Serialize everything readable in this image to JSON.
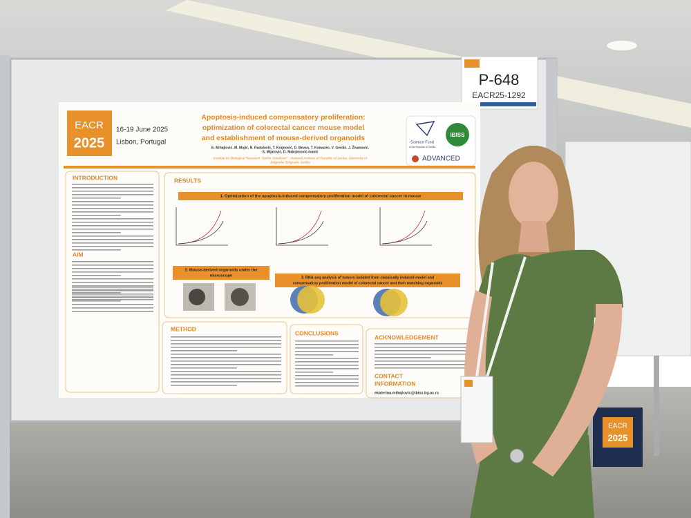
{
  "placard": {
    "number": "P-648",
    "code": "EACR25-1292"
  },
  "poster": {
    "logo": {
      "line1": "EACR",
      "line2": "2025"
    },
    "date": "16-19 June 2025",
    "location": "Lisbon, Portugal",
    "title_lines": [
      "Apoptosis-induced compensatory proliferation:",
      "optimization of colorectal cancer mouse model",
      "and establishment of mouse-derived organoids"
    ],
    "authors": [
      "E. Mihajlović, M. Mojić, N. Radulović, T. Krajnović, D. Bevan, T. Komazec, V. Gerdić, J. Živanović,",
      "S. Mijatović, D. Maksimović-Ivanić"
    ],
    "affiliation": [
      "Institute for Biological Research \"Siniša Stanković\" - National Institute of Republic of Serbia, University of",
      "Belgrade, Belgrade, Serbia"
    ],
    "sponsors": {
      "fund": [
        "Science Fund",
        "of the Republic of Serbia"
      ],
      "program": "ADVANCED",
      "institute": "IBISS"
    },
    "sections": {
      "introduction": "INTRODUCTION",
      "aim": "AIM",
      "results": "RESULTS",
      "method": "METHOD",
      "conclusions": "CONCLUSIONS",
      "acknowledgement": "ACKNOWLEDGEMENT",
      "contact": [
        "CONTACT",
        "INFORMATION"
      ]
    },
    "results": {
      "r1": "1. Optimization of the apoptosis-induced compensatory proliferation model of colorectal cancer in mouse",
      "r2": [
        "2. Mouse-derived organoids under the",
        "microscope"
      ],
      "r3": [
        "3. RNA-seq analysis of tumors isolated from classically induced model and",
        "compensatory proliferation model of colorectal cancer and their matching organoids"
      ]
    },
    "email": "ekaterina.mihajlovic@ibiss.bg.ac.rs"
  },
  "box": {
    "line1": "EACR",
    "line2": "2025"
  }
}
